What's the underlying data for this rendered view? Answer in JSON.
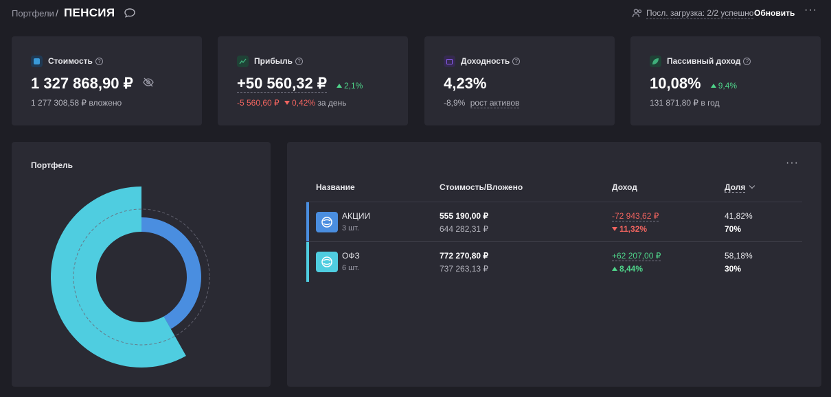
{
  "header": {
    "breadcrumb": "Портфели",
    "separator": "/",
    "title": "ПЕНСИЯ",
    "load_status": "Посл. загрузка: 2/2 успешно",
    "refresh_label": "Обновить",
    "more": "···"
  },
  "cards": {
    "value": {
      "label": "Стоимость",
      "amount": "1 327 868,90 ₽",
      "sub": "1 277 308,58 ₽ вложено",
      "icon_color": "#3a9ad9"
    },
    "profit": {
      "label": "Прибыль",
      "amount": "+50 560,32 ₽",
      "pct": "2,1%",
      "day_change": "-5 560,60 ₽",
      "day_pct": "0,42%",
      "day_suffix": "за день",
      "icon_color": "#3fae7a"
    },
    "yield": {
      "label": "Доходность",
      "amount": "4,23%",
      "sub_value": "-8,9%",
      "sub_link": "рост активов",
      "icon_color": "#8a5cf0"
    },
    "passive": {
      "label": "Пассивный доход",
      "amount": "10,08%",
      "pct": "9,4%",
      "sub": "131 871,80 ₽ в год",
      "icon_color": "#3fae7a"
    }
  },
  "chart_panel": {
    "title": "Портфель"
  },
  "chart_data": {
    "type": "pie",
    "categories": [
      "АКЦИИ",
      "ОФЗ"
    ],
    "values": [
      41.82,
      58.18
    ],
    "target_values": [
      70,
      30
    ],
    "colors": [
      "#4a8ee0",
      "#4fcde0"
    ]
  },
  "table": {
    "more": "···",
    "columns": {
      "name": "Название",
      "value": "Стоимость/Вложено",
      "income": "Доход",
      "share": "Доля"
    },
    "rows": [
      {
        "name": "АКЦИИ",
        "count": "3 шт.",
        "value": "555 190,00 ₽",
        "invested": "644 282,31 ₽",
        "income": "-72 943,62 ₽",
        "income_pct": "11,32%",
        "income_dir": "down",
        "share": "41,82%",
        "target": "70%",
        "color": "#4a8ee0"
      },
      {
        "name": "ОФЗ",
        "count": "6 шт.",
        "value": "772 270,80 ₽",
        "invested": "737 263,13 ₽",
        "income": "+62 207,00 ₽",
        "income_pct": "8,44%",
        "income_dir": "up",
        "share": "58,18%",
        "target": "30%",
        "color": "#4fcde0"
      }
    ]
  }
}
